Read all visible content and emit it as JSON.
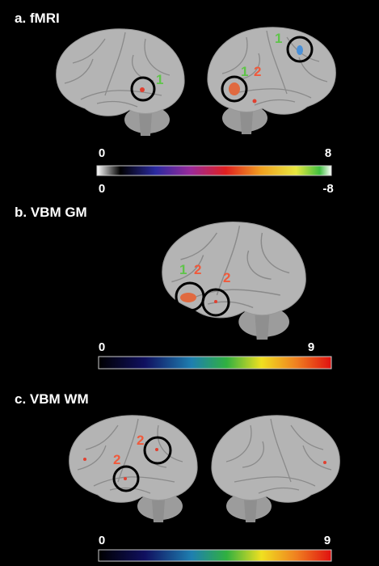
{
  "panels": [
    {
      "title": "a. fMRI",
      "labels": [
        "1",
        "1",
        "1",
        "2"
      ],
      "scale_top": [
        "0",
        "8"
      ],
      "scale_bottom": [
        "0",
        "-8"
      ]
    },
    {
      "title": "b. VBM GM",
      "labels": [
        "1",
        "2",
        "2"
      ],
      "scale_top": [
        "0",
        "9"
      ]
    },
    {
      "title": "c. VBM WM",
      "labels": [
        "2",
        "2"
      ],
      "scale_top": [
        "0",
        "9"
      ]
    }
  ]
}
